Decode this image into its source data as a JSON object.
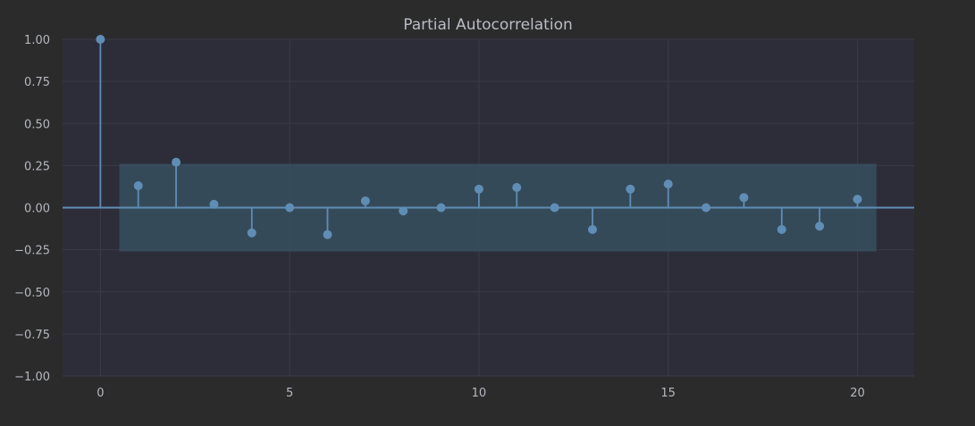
{
  "chart_data": {
    "type": "stem",
    "title": "Partial Autocorrelation",
    "xlabel": "",
    "ylabel": "",
    "xlim": [
      -1,
      21.5
    ],
    "ylim": [
      -1.0,
      1.0
    ],
    "x_ticks": [
      0,
      5,
      10,
      15,
      20
    ],
    "y_ticks": [
      1.0,
      0.75,
      0.5,
      0.25,
      0.0,
      -0.25,
      -0.5,
      -0.75,
      -1.0
    ],
    "y_tick_labels": [
      "1.00",
      "0.75",
      "0.50",
      "0.25",
      "0.00",
      "−0.25",
      "−0.50",
      "−0.75",
      "−1.00"
    ],
    "grid": true,
    "confidence_band": {
      "x_range": [
        0.5,
        20.5
      ],
      "lower": -0.26,
      "upper": 0.26
    },
    "lags": [
      0,
      1,
      2,
      3,
      4,
      5,
      6,
      7,
      8,
      9,
      10,
      11,
      12,
      13,
      14,
      15,
      16,
      17,
      18,
      19,
      20
    ],
    "values": [
      1.0,
      0.13,
      0.27,
      0.02,
      -0.15,
      0.0,
      -0.16,
      0.04,
      -0.02,
      0.0,
      0.11,
      0.12,
      0.0,
      -0.13,
      0.11,
      0.14,
      0.0,
      0.06,
      -0.13,
      -0.11,
      0.05
    ],
    "colors": {
      "background": "#2b2b2b",
      "plot_area": "#2d2d3a",
      "grid": "#3a3b48",
      "band": "#37505f",
      "series": "#5f8db5",
      "text": "#b5b8bf"
    }
  }
}
